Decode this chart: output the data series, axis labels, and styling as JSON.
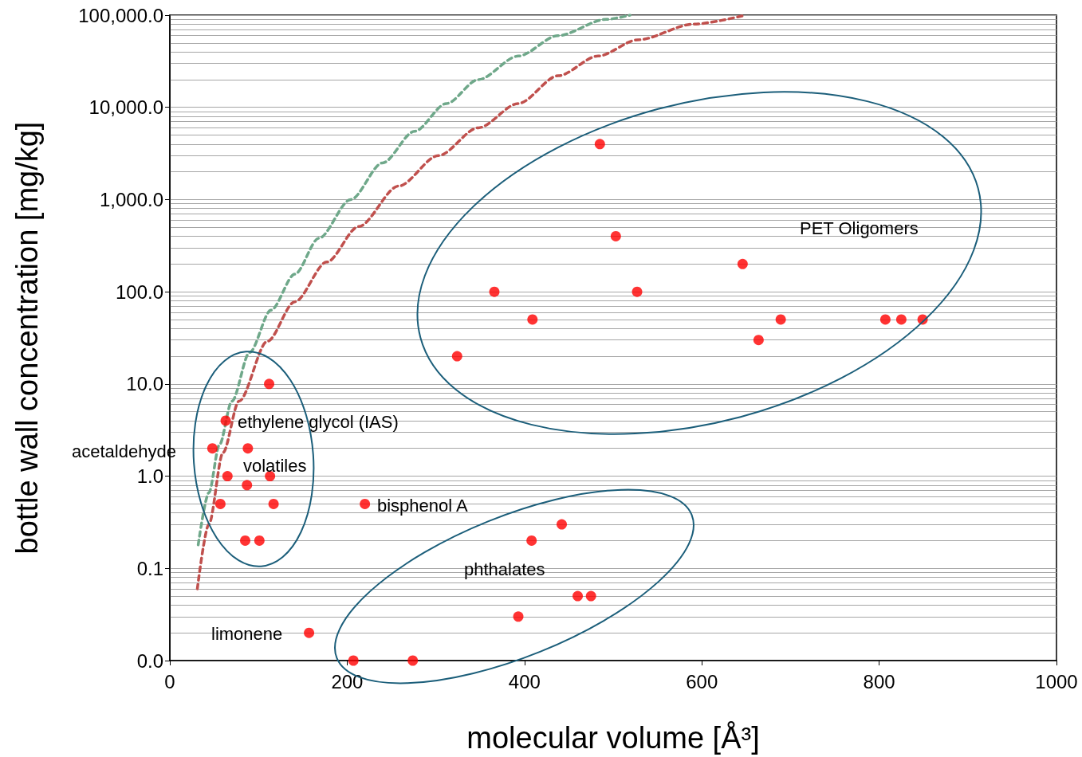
{
  "chart_data": {
    "type": "scatter",
    "xlabel": "molecular volume [Å³]",
    "ylabel": "bottle wall concentration [mg/kg]",
    "log": "y",
    "grid": "y",
    "marker": "circle",
    "xlim": [
      0,
      1000
    ],
    "xticks": [
      0,
      200,
      400,
      600,
      800,
      {
        "value": 1000,
        "label": "1000"
      }
    ],
    "ylim": [
      0.01,
      100000
    ],
    "yticks": [
      {
        "value": 0.01,
        "label": "0.0"
      },
      {
        "value": 0.1,
        "label": "0.1"
      },
      {
        "value": 1,
        "label": "1.0"
      },
      {
        "value": 10,
        "label": "10.0"
      },
      {
        "value": 100,
        "label": "100.0"
      },
      {
        "value": 1000,
        "label": "1,000.0"
      },
      {
        "value": 10000,
        "label": "10,000.0"
      },
      {
        "value": 100000,
        "label": "100,000.0"
      }
    ],
    "series": [
      {
        "color": "#ff0000",
        "x": [
          485,
          503,
          366,
          409,
          324,
          527,
          646,
          664,
          689,
          807,
          825,
          849,
          112,
          63,
          48,
          88,
          65,
          113,
          87,
          57,
          117,
          85,
          101,
          220,
          442,
          408,
          460,
          475,
          393,
          157,
          207,
          274
        ],
        "values": [
          4000,
          400,
          100,
          50,
          20,
          100,
          200,
          30,
          50,
          50,
          50,
          50,
          10,
          4,
          2,
          2,
          1,
          1,
          0.8,
          0.5,
          0.5,
          0.2,
          0.2,
          0.5,
          0.3,
          0.2,
          0.05,
          0.05,
          0.03,
          0.02,
          0.01,
          0.01
        ]
      },
      {
        "type": "line",
        "color": "#6fa88a",
        "line_style": "dashed",
        "marker": "none",
        "x": [
          32,
          44,
          56,
          70,
          90,
          114,
          141,
          168,
          204,
          240,
          276,
          312,
          348,
          393,
          438,
          492,
          519
        ],
        "values": [
          0.18,
          0.66,
          2.2,
          6.5,
          22,
          63,
          155,
          380,
          1000,
          2500,
          5500,
          11000,
          20000,
          36000,
          60000,
          90000,
          100000
        ]
      },
      {
        "type": "line",
        "color": "#c0504d",
        "line_style": "dashed",
        "marker": "none",
        "x": [
          31,
          44,
          60,
          78,
          110,
          141,
          177,
          213,
          258,
          303,
          348,
          393,
          438,
          483,
          528,
          591,
          649
        ],
        "values": [
          0.06,
          0.3,
          1.8,
          6.5,
          29,
          78,
          210,
          510,
          1400,
          3000,
          6000,
          11000,
          22000,
          36000,
          54000,
          80000,
          100000
        ]
      }
    ],
    "annotations": [
      "PET Oligomers",
      "ethylene glycol (IAS)",
      "acetaldehyde",
      "volatiles",
      "bisphenol A",
      "phthalates",
      "limonene"
    ]
  }
}
